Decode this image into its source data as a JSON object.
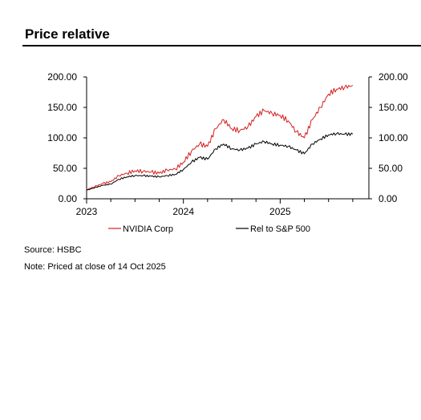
{
  "title": "Price relative",
  "source": "Source: HSBC",
  "note": "Note:  Priced at close of    14 Oct 2025",
  "colors": {
    "nvidia": "#d42020",
    "rel": "#000000",
    "axis": "#000000"
  },
  "chart_data": {
    "type": "line",
    "xlabel": "",
    "ylabel": "",
    "x_ticks": [
      "2023",
      "2024",
      "2025"
    ],
    "x_range": [
      "2023-01",
      "2025-12"
    ],
    "y_ticks": [
      "0.00",
      "50.00",
      "100.00",
      "150.00",
      "200.00"
    ],
    "ylim": [
      0,
      200
    ],
    "grid": false,
    "legend_position": "bottom",
    "x": [
      "2023-01",
      "2023-02",
      "2023-03",
      "2023-04",
      "2023-05",
      "2023-06",
      "2023-07",
      "2023-08",
      "2023-09",
      "2023-10",
      "2023-11",
      "2023-12",
      "2024-01",
      "2024-02",
      "2024-03",
      "2024-04",
      "2024-05",
      "2024-06",
      "2024-07",
      "2024-08",
      "2024-09",
      "2024-10",
      "2024-11",
      "2024-12",
      "2025-01",
      "2025-02",
      "2025-03",
      "2025-04",
      "2025-05",
      "2025-06",
      "2025-07",
      "2025-08",
      "2025-09",
      "2025-10"
    ],
    "series": [
      {
        "name": "NVIDIA Corp",
        "values": [
          15,
          20,
          25,
          28,
          38,
          42,
          46,
          45,
          44,
          42,
          47,
          49,
          60,
          78,
          90,
          86,
          115,
          130,
          115,
          112,
          118,
          135,
          145,
          140,
          137,
          128,
          110,
          100,
          130,
          150,
          172,
          180,
          183,
          186
        ]
      },
      {
        "name": "Rel to S&P 500",
        "values": [
          14,
          18,
          22,
          24,
          32,
          36,
          38,
          38,
          37,
          36,
          38,
          40,
          48,
          60,
          68,
          65,
          82,
          90,
          82,
          80,
          83,
          90,
          94,
          90,
          88,
          86,
          80,
          74,
          90,
          98,
          105,
          107,
          106,
          106
        ]
      }
    ]
  }
}
